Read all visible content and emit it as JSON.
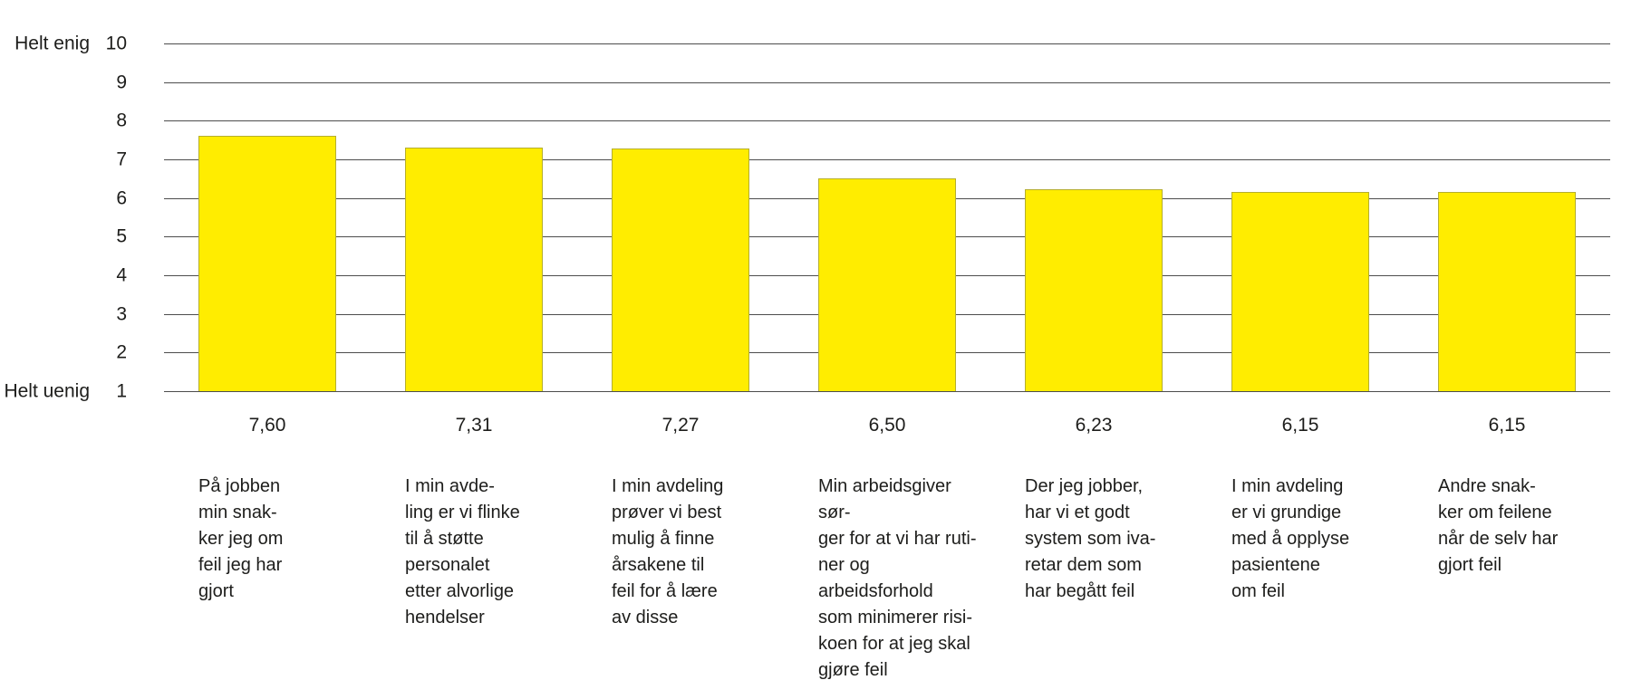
{
  "chart_data": {
    "type": "bar",
    "title": "",
    "categories": [
      "På jobben\nmin snak-\nker jeg om\nfeil jeg har\ngjort",
      "I min avde-\nling er vi flinke\ntil å støtte\npersonalet\netter alvorlige\nhendelser",
      "I min avdeling\nprøver vi best\nmulig å finne\nårsakene til\nfeil for å lære\nav disse",
      "Min arbeidsgiver sør-\nger for at vi har ruti-\nner og arbeidsforhold\nsom minimerer risi-\nkoen for at jeg skal\ngjøre feil",
      "Der jeg jobber,\nhar vi et godt\nsystem som iva-\nretar dem som\nhar begått feil",
      "I min avdeling\ner vi grundige\nmed å opplyse\npasientene\nom feil",
      "Andre snak-\nker om feilene\nnår de selv har\ngjort feil"
    ],
    "values": [
      7.6,
      7.31,
      7.27,
      6.5,
      6.23,
      6.15,
      6.15
    ],
    "value_labels": [
      "7,60",
      "7,31",
      "7,27",
      "6,50",
      "6,23",
      "6,15",
      "6,15"
    ],
    "xlabel": "",
    "ylabel": "",
    "y_axis": {
      "min": 1,
      "max": 10,
      "ticks": [
        10,
        9,
        8,
        7,
        6,
        5,
        4,
        3,
        2,
        1
      ],
      "top_label": "Helt enig",
      "bottom_label": "Helt uenig"
    },
    "grid": true,
    "legend_position": "none",
    "colors": {
      "bar_fill": "#ffed00",
      "bar_border": "#b5ae2e",
      "gridline": "#4d4d4d",
      "text": "#1d1d1b",
      "background": "#ffffff"
    }
  }
}
